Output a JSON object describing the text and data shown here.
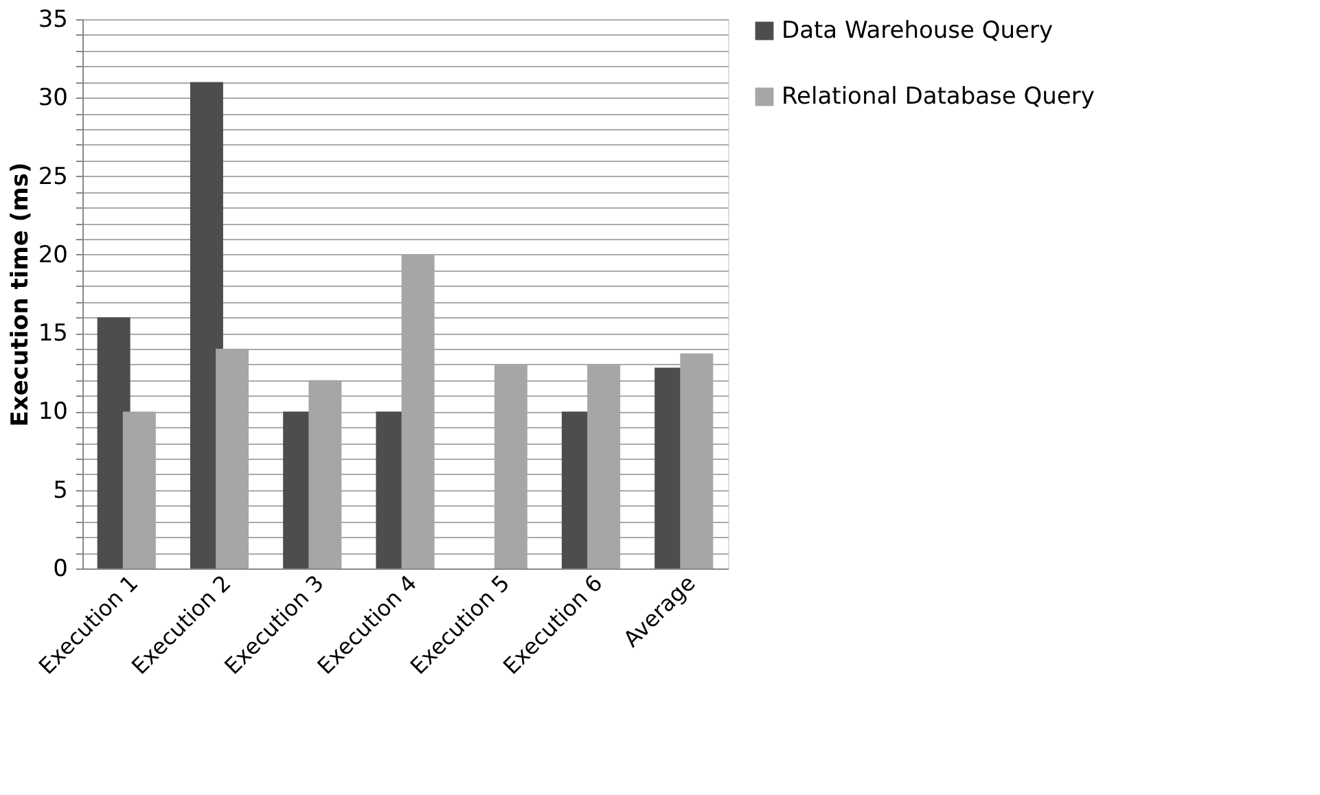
{
  "chart_data": {
    "type": "bar",
    "ylabel": "Execution time (ms)",
    "categories": [
      "Execution 1",
      "Execution 2",
      "Execution 3",
      "Execution 4",
      "Execution 5",
      "Execution 6",
      "Average"
    ],
    "series": [
      {
        "name": "Data Warehouse Query",
        "color": "#4d4d4d",
        "values": [
          16,
          31,
          10,
          10,
          null,
          10,
          12.8
        ]
      },
      {
        "name": "Relational Database Query",
        "color": "#a6a6a6",
        "values": [
          10,
          14,
          12,
          20,
          13,
          13,
          13.7
        ]
      }
    ],
    "ylim": [
      0,
      35
    ],
    "yticks": [
      0,
      {
        "value": 1,
        "label": null
      },
      {
        "value": 2,
        "label": null
      },
      {
        "value": 3,
        "label": null
      },
      {
        "value": 4,
        "label": null
      },
      5,
      {
        "value": 6,
        "label": null
      },
      {
        "value": 7,
        "label": null
      },
      {
        "value": 8,
        "label": null
      },
      {
        "value": 9,
        "label": null
      },
      10,
      {
        "value": 11,
        "label": null
      },
      {
        "value": 12,
        "label": null
      },
      {
        "value": 13,
        "label": null
      },
      {
        "value": 14,
        "label": null
      },
      15,
      {
        "value": 16,
        "label": null
      },
      {
        "value": 17,
        "label": null
      },
      {
        "value": 18,
        "label": null
      },
      {
        "value": 19,
        "label": null
      },
      20,
      {
        "value": 21,
        "label": null
      },
      {
        "value": 22,
        "label": null
      },
      {
        "value": 23,
        "label": null
      },
      {
        "value": 24,
        "label": null
      },
      25,
      {
        "value": 26,
        "label": null
      },
      {
        "value": 27,
        "label": null
      },
      {
        "value": 28,
        "label": null
      },
      {
        "value": 29,
        "label": null
      },
      30,
      {
        "value": 31,
        "label": null
      },
      {
        "value": 32,
        "label": null
      },
      {
        "value": 33,
        "label": null
      },
      {
        "value": 34,
        "label": null
      },
      35
    ],
    "grid": true,
    "legend": "right"
  }
}
